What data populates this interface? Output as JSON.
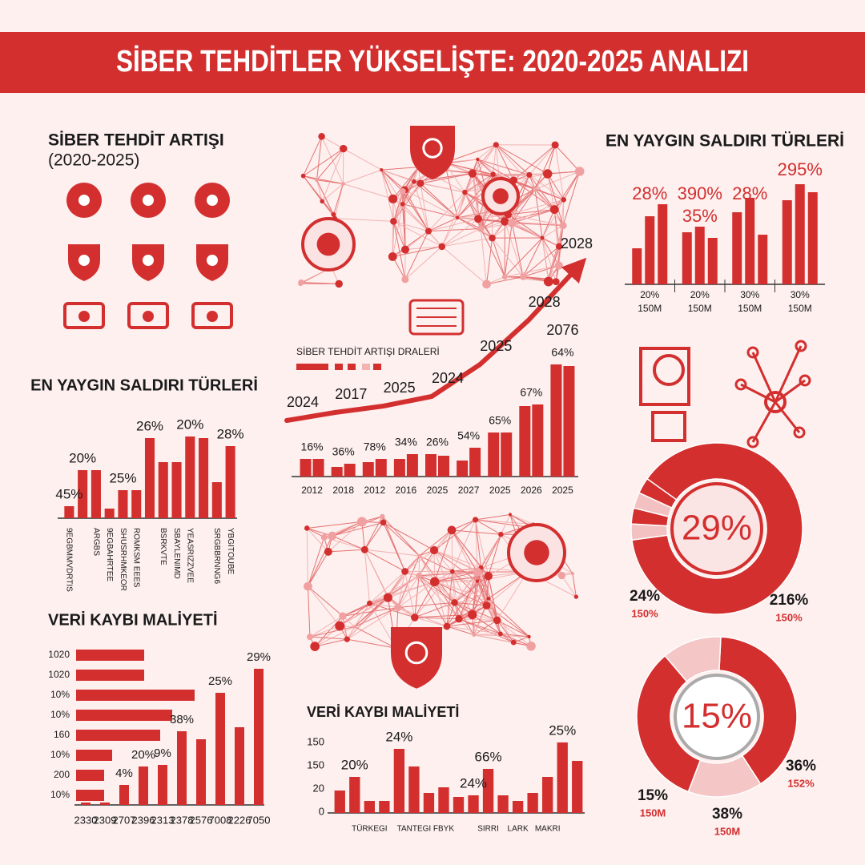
{
  "title": "SİBER TEHDİTLER YÜKSELİŞTE: 2020-2025 ANALIZI",
  "icon_panel": {
    "title": [
      "SİBER TEHDİT ARTIŞI",
      "(2020-2025)"
    ]
  },
  "chart_data": [
    {
      "type": "grouped_bar",
      "title": "EN YAYGIN SALDIRI TÜRLERİ",
      "categories": [
        "20%",
        "20%",
        "30%",
        "30%"
      ],
      "subcategories": [
        "150M",
        "150M",
        "150M",
        "150M"
      ],
      "annotations": [
        [
          "28%"
        ],
        [
          "390%",
          "35%"
        ],
        [
          "28%"
        ],
        [
          "295%"
        ]
      ],
      "series": [
        {
          "color": "#d32f2f",
          "values": [
            45,
            65,
            90,
            105
          ]
        },
        {
          "color": "#d32f2f",
          "values": [
            85,
            72,
            108,
            125
          ]
        },
        {
          "color": "#d32f2f",
          "values": [
            100,
            58,
            62,
            115
          ]
        }
      ],
      "ylim": [
        0,
        130
      ]
    },
    {
      "type": "bar",
      "title": "EN YAYGIN SALDIRI TÜRLERİ",
      "categories": [
        "9EGBMMVDRTIS",
        null,
        "ARGBS",
        "9EGBAHRTEE",
        "SHUSRHMKEOR",
        "ROMKSM EEES",
        null,
        "BSRKVTE",
        "SBAYLENIMD",
        "YEASRIZZVEE",
        null,
        "SRGBBRNNG6",
        "YBGITOUBE"
      ],
      "values": [
        15,
        60,
        60,
        12,
        35,
        35,
        100,
        70,
        70,
        102,
        100,
        45,
        90
      ],
      "annotations": [
        {
          "text": "45%",
          "index": 0
        },
        {
          "text": "20%",
          "index": 1
        },
        {
          "text": "25%",
          "index": 4
        },
        {
          "text": "26%",
          "index": 6
        },
        {
          "text": "20%",
          "index": 9
        },
        {
          "text": "28%",
          "index": 12
        }
      ],
      "color": "#d32f2f",
      "ylim": [
        0,
        110
      ]
    },
    {
      "type": "bar_line",
      "title": "SİBER TEHDİT ARTIŞI DRALERİ",
      "categories": [
        "2012",
        "2018",
        "2012",
        "2016",
        "2025",
        "2027",
        "2025",
        "2026",
        "2025"
      ],
      "series": [
        {
          "color": "#d32f2f",
          "values": [
            22,
            12,
            18,
            22,
            28,
            20,
            55,
            88,
            140
          ]
        },
        {
          "color": "#d32f2f",
          "values": [
            22,
            16,
            22,
            28,
            26,
            36,
            55,
            90,
            138
          ]
        }
      ],
      "bar_labels": [
        "16%",
        "36%",
        "78%",
        "34%",
        "26%",
        "54%",
        "65%",
        "67%",
        "64%"
      ],
      "peak_label": "2076",
      "line": {
        "color": "#d32f2f",
        "values": [
          70,
          80,
          88,
          100,
          140,
          195,
          260
        ],
        "labels": [
          "2024",
          "2017",
          "2025",
          "2024",
          "2025",
          "2028",
          "2028"
        ]
      },
      "ylim": [
        0,
        290
      ]
    },
    {
      "type": "bar_combo",
      "title": "VERİ KAYBI MALİYETİ",
      "rows": [
        "1020",
        "1020",
        "10%",
        "10%",
        "160",
        "10%",
        "200",
        "10%"
      ],
      "row_values": [
        85,
        85,
        148,
        120,
        105,
        45,
        35,
        35
      ],
      "xlim": [
        0,
        230
      ],
      "categories": [
        "2330",
        "2309",
        "2707",
        "2396",
        "2313",
        "2378",
        "2576",
        "7008",
        "2226",
        "7050"
      ],
      "values": [
        3,
        3,
        25,
        48,
        50,
        92,
        82,
        140,
        97,
        170
      ],
      "ylim": [
        0,
        195
      ],
      "annotations": [
        {
          "text": "4%",
          "index": 2
        },
        {
          "text": "20%",
          "index": 3
        },
        {
          "text": "9%",
          "index": 4
        },
        {
          "text": "38%",
          "index": 5
        },
        {
          "text": "25%",
          "index": 7
        },
        {
          "text": "29%",
          "index": 9
        }
      ],
      "color": "#d32f2f"
    },
    {
      "type": "bar",
      "title": "VERİ KAYBI MALİYETİ",
      "y_labels": [
        "150",
        "150",
        "20",
        "0"
      ],
      "categories": [
        null,
        null,
        "TÜRKEGI",
        null,
        null,
        "TANTEGI",
        null,
        "FBYK",
        null,
        null,
        "SIRRI",
        null,
        "LARK",
        null,
        "MAKRI",
        null,
        null
      ],
      "values": [
        28,
        45,
        15,
        15,
        80,
        58,
        25,
        32,
        20,
        22,
        55,
        22,
        15,
        25,
        45,
        88,
        65
      ],
      "annotations": [
        {
          "text": "20%",
          "index": 1
        },
        {
          "text": "24%",
          "index": 4
        },
        {
          "text": "24%",
          "index": 9
        },
        {
          "text": "66%",
          "index": 10
        },
        {
          "text": "25%",
          "index": 15
        }
      ],
      "color": "#d32f2f",
      "ylim": [
        0,
        100
      ]
    },
    {
      "type": "donut",
      "center_label": "29%",
      "values": [
        88,
        3,
        3,
        3,
        3
      ],
      "colors": [
        "#d32f2f",
        "#f3c1c1",
        "#d32f2f",
        "#f3c1c1",
        "#d32f2f"
      ],
      "side_labels": [
        [
          "24%",
          "150%"
        ],
        [
          "216%",
          "150%"
        ]
      ]
    },
    {
      "type": "donut",
      "center_label": "15%",
      "values": [
        40,
        15,
        33,
        12
      ],
      "colors": [
        "#d32f2f",
        "#f5c6c6",
        "#d32f2f",
        "#f5c6c6"
      ],
      "side_labels": [
        [
          "36%",
          "152%"
        ],
        [
          "15%",
          "150M"
        ],
        [
          "38%",
          "150M"
        ]
      ]
    }
  ]
}
